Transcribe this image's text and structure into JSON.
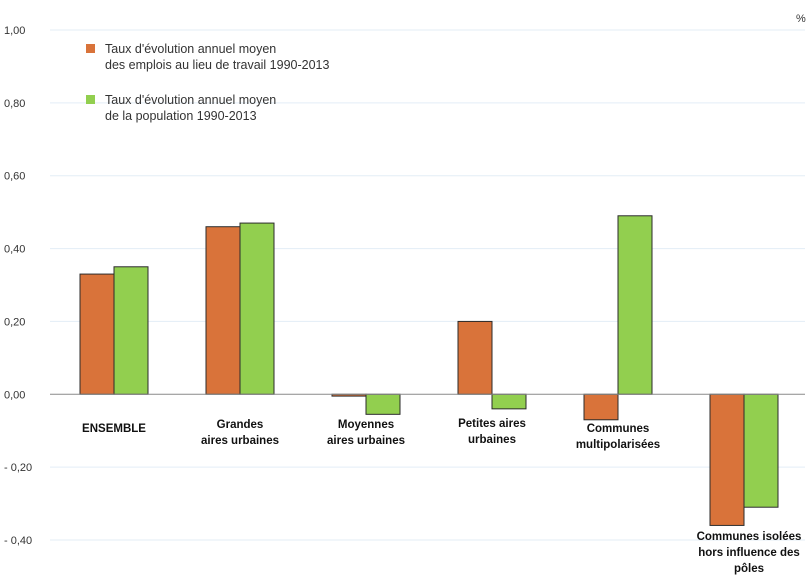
{
  "chart_data": {
    "type": "bar",
    "unit": "%",
    "categories": [
      [
        "ENSEMBLE"
      ],
      [
        "Grandes",
        "aires urbaines"
      ],
      [
        "Moyennes",
        "aires urbaines"
      ],
      [
        "Petites aires",
        "urbaines"
      ],
      [
        "Communes",
        "multipolarisées"
      ],
      [
        "Communes isolées",
        "hors influence des",
        "pôles"
      ]
    ],
    "series": [
      {
        "name": [
          "Taux d'évolution annuel moyen",
          "des emplois au lieu de travail 1990-2013"
        ],
        "color": "#d9733a",
        "values": [
          0.33,
          0.46,
          -0.005,
          0.2,
          -0.07,
          -0.36
        ]
      },
      {
        "name": [
          "Taux d'évolution annuel moyen",
          "de la population 1990-2013"
        ],
        "color": "#92cf4f",
        "values": [
          0.35,
          0.47,
          -0.055,
          -0.04,
          0.49,
          -0.31
        ]
      }
    ],
    "ylim": [
      -0.4,
      1.0
    ],
    "yticks": [
      "1,00",
      "0,80",
      "0,60",
      "0,40",
      "0,20",
      "0,00",
      "- 0,20",
      "- 0,40"
    ],
    "ytick_values": [
      1.0,
      0.8,
      0.6,
      0.4,
      0.2,
      0.0,
      -0.2,
      -0.4
    ],
    "grid": true,
    "legend": "top-left"
  }
}
